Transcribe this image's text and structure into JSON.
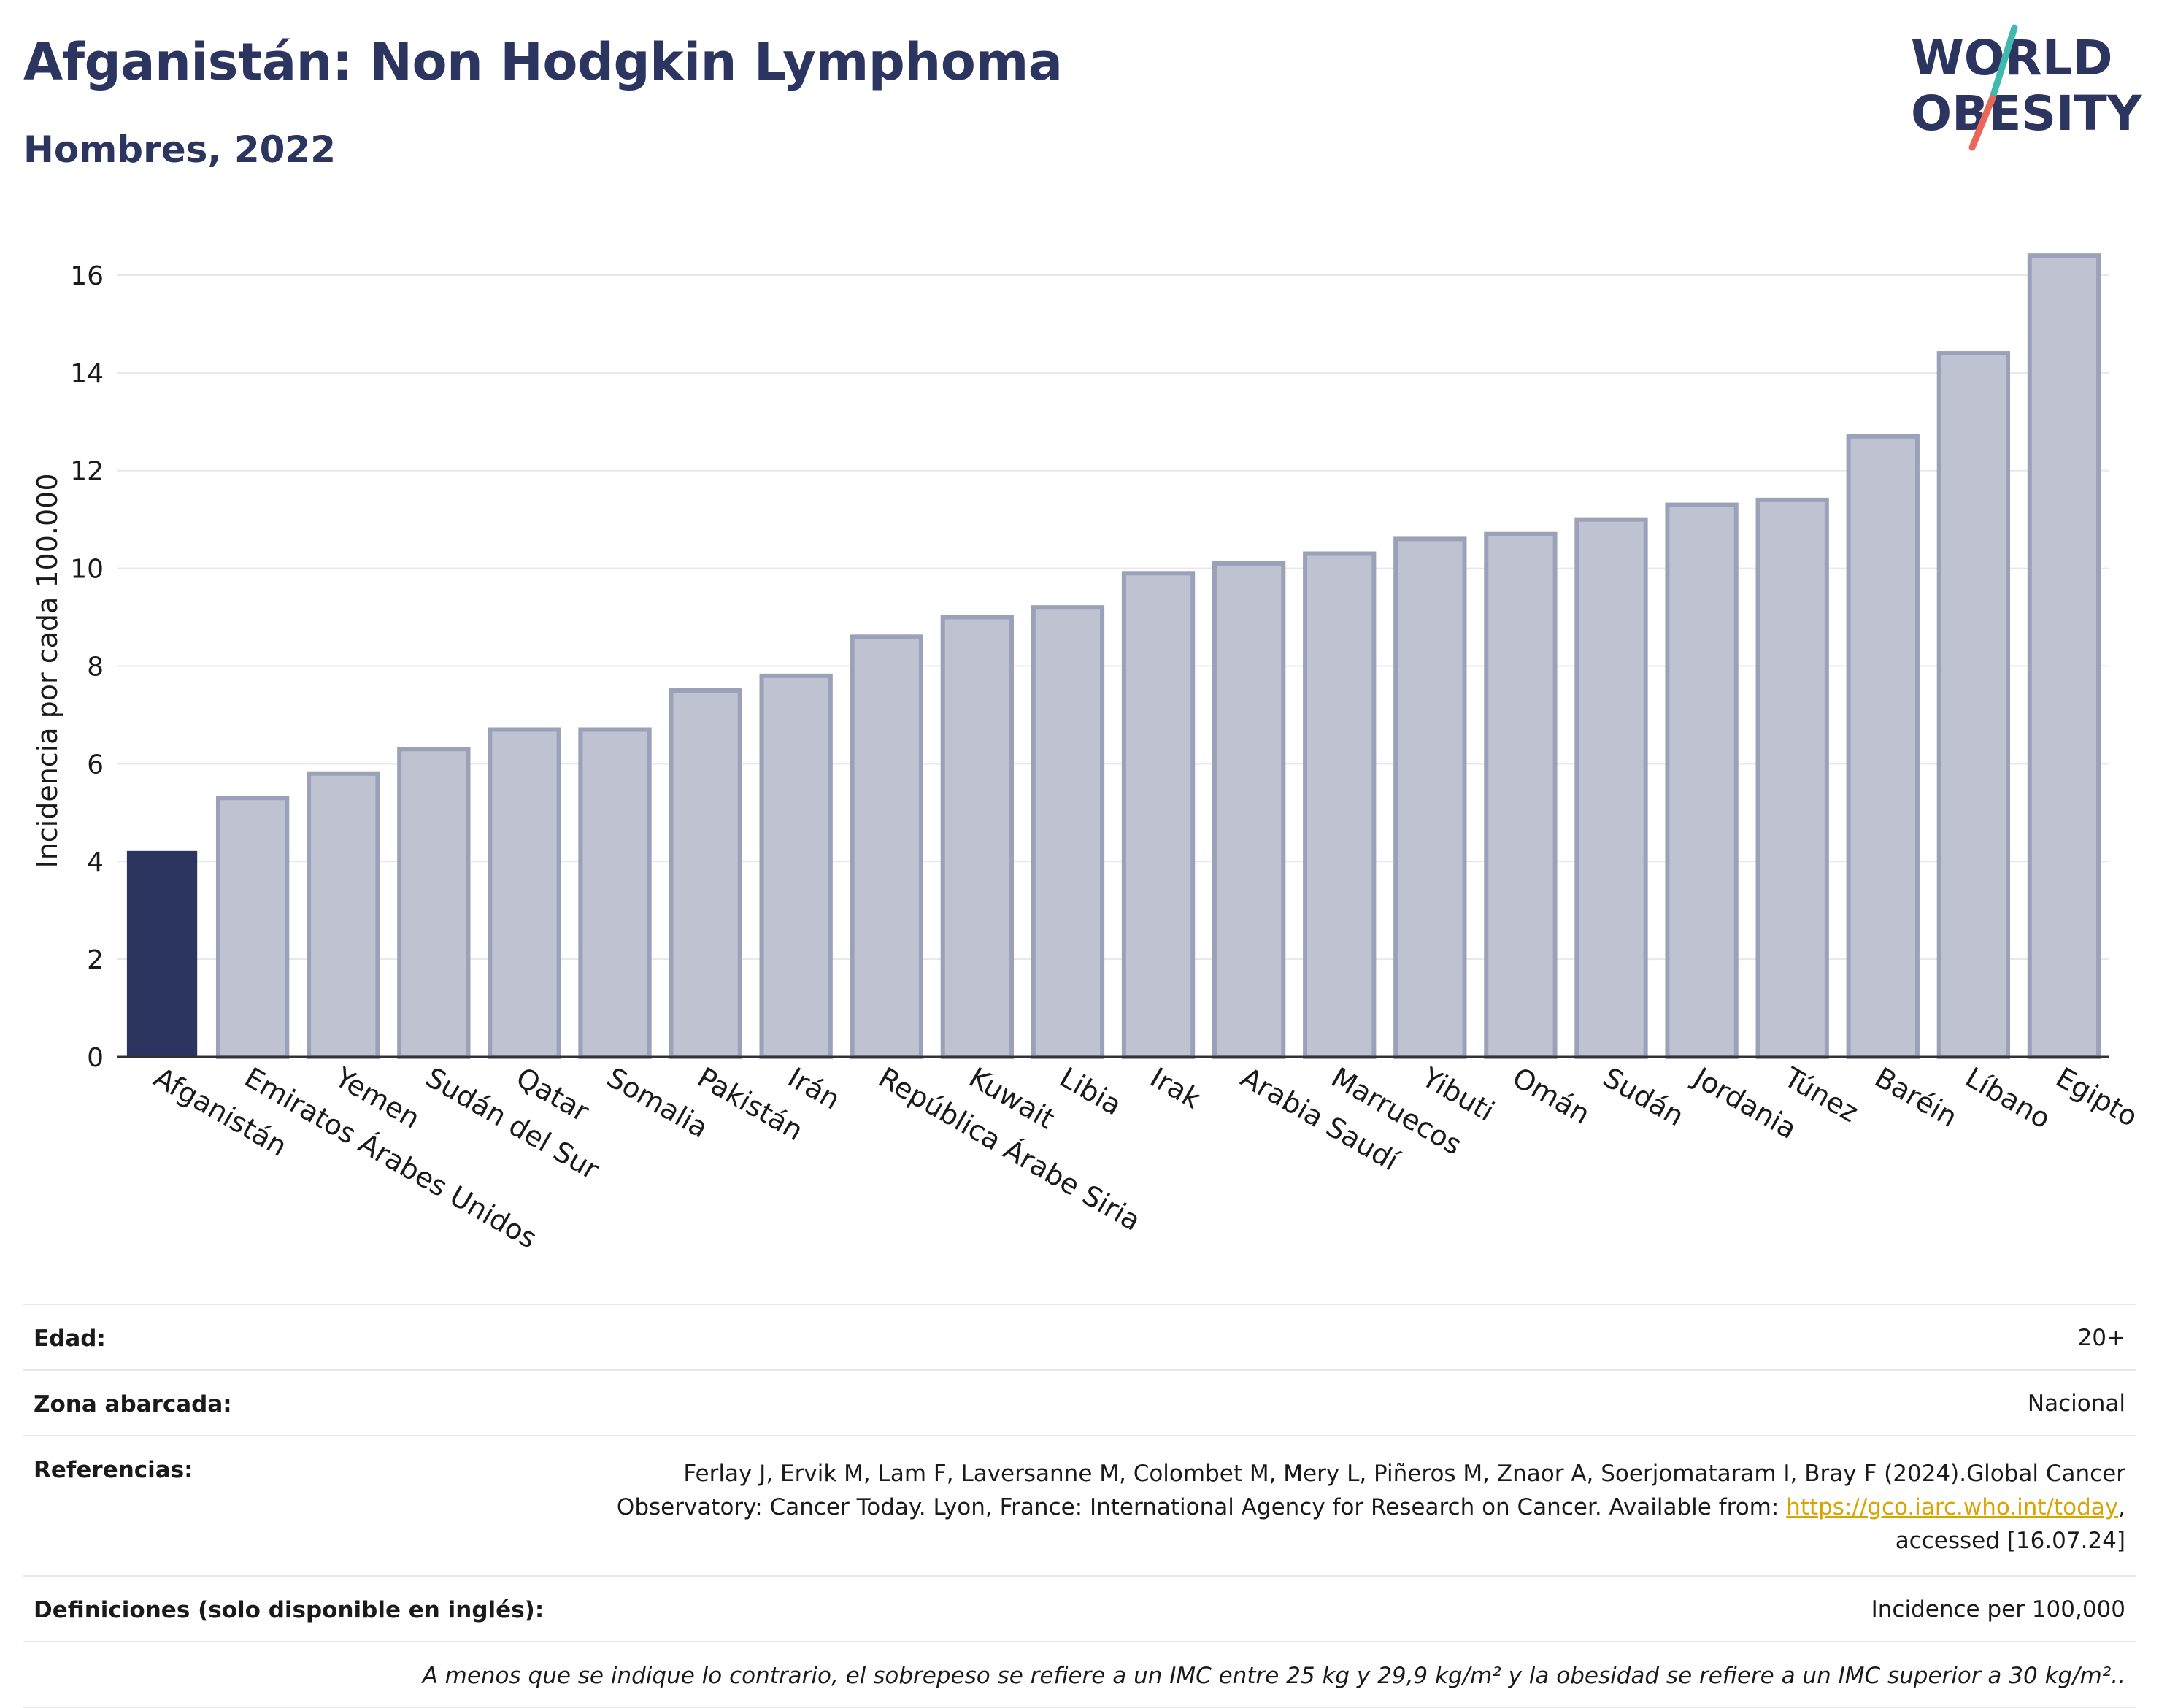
{
  "header": {
    "title": "Afganistán: Non Hodgkin Lymphoma",
    "subtitle": "Hombres, 2022"
  },
  "logo": {
    "line1": "WORLD",
    "line2": "OBESITY",
    "text_color": "#2b3560",
    "slash_colors": [
      "#3fb8b0",
      "#e8675a"
    ]
  },
  "chart_data": {
    "type": "bar",
    "ylabel": "Incidencia por cada 100.000",
    "ylim": [
      0,
      17
    ],
    "yticks": [
      0,
      2,
      4,
      6,
      8,
      10,
      12,
      14,
      16
    ],
    "grid": true,
    "highlight_category": "Afganistán",
    "highlight_color": "#2b3560",
    "bar_color": "#bfc3d1",
    "bar_edge_color": "#9ba1b8",
    "categories": [
      "Afganistán",
      "Emiratos Árabes Unidos",
      "Yemen",
      "Sudán del Sur",
      "Qatar",
      "Somalia",
      "Pakistán",
      "Irán",
      "República Árabe Siria",
      "Kuwait",
      "Libia",
      "Irak",
      "Arabia Saudí",
      "Marruecos",
      "Yibuti",
      "Omán",
      "Sudán",
      "Jordania",
      "Túnez",
      "Baréin",
      "Líbano",
      "Egipto"
    ],
    "values": [
      4.2,
      5.3,
      5.8,
      6.3,
      6.7,
      6.7,
      7.5,
      7.8,
      8.6,
      9.0,
      9.2,
      9.9,
      10.1,
      10.3,
      10.6,
      10.7,
      11.0,
      11.3,
      11.4,
      12.7,
      14.4,
      16.4
    ]
  },
  "meta": {
    "age_label": "Edad:",
    "age_value": "20+",
    "area_label": "Zona abarcada:",
    "area_value": "Nacional",
    "refs_label": "Referencias:",
    "refs_line1": "Ferlay J, Ervik M, Lam F, Laversanne M, Colombet M, Mery L, Piñeros M, Znaor A, Soerjomataram I, Bray F (2024).Global Cancer",
    "refs_line2_pre": "Observatory: Cancer Today. Lyon, France: International Agency for Research on Cancer. Available from: ",
    "refs_link": "https://gco.iarc.who.int/today",
    "refs_line2_post": ",",
    "refs_line3": "accessed [16.07.24]",
    "defs_label": "Definiciones (solo disponible en inglés):",
    "defs_value": "Incidence per 100,000",
    "note": "A menos que se indique lo contrario, el sobrepeso se refiere a un IMC entre 25 kg y 29,9 kg/m² y la obesidad se refiere a un IMC superior a 30 kg/m²..",
    "link_color": "#d9a400"
  }
}
